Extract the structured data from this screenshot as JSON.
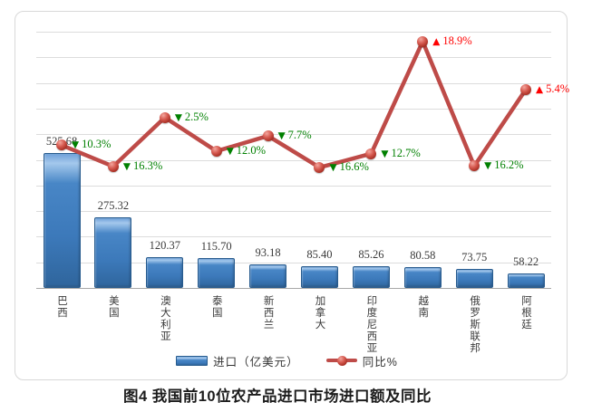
{
  "caption": "图4 我国前10位农产品进口市场进口额及同比",
  "colors": {
    "bar_fill": "#3C79BA",
    "bar_border": "#275B8E",
    "line": "#BE4B48",
    "marker": "#C0392B",
    "increase": "#FF0000",
    "decrease": "#008000",
    "grid": "#DCDCDC",
    "axis": "#A8A8A8",
    "value_label": "#3A3A3A",
    "frame_border": "#D8D8D8"
  },
  "legend": {
    "import_label": "进口（亿美元）",
    "yoy_label": "同比%"
  },
  "chart_data": {
    "type": "bar",
    "subtype": "bar-line-combo",
    "title": "图4 我国前10位农产品进口市场进口额及同比",
    "categories": [
      "巴西",
      "美国",
      "澳大利亚",
      "泰国",
      "新西兰",
      "加拿大",
      "印度尼西亚",
      "越南",
      "俄罗斯联邦",
      "阿根廷"
    ],
    "series": [
      {
        "name": "进口（亿美元）",
        "type": "bar",
        "values": [
          525.68,
          275.32,
          120.37,
          115.7,
          93.18,
          85.4,
          85.26,
          80.58,
          73.75,
          58.22
        ],
        "labels": [
          "525.68",
          "275.32",
          "120.37",
          "115.70",
          "93.18",
          "85.40",
          "85.26",
          "80.58",
          "73.75",
          "58.22"
        ]
      },
      {
        "name": "同比%",
        "type": "line",
        "values": [
          -10.3,
          -16.3,
          -2.5,
          -12.0,
          -7.7,
          -16.6,
          -12.7,
          18.9,
          -16.2,
          5.4
        ],
        "labels": [
          "10.3%",
          "16.3%",
          "2.5%",
          "12.0%",
          "7.7%",
          "16.6%",
          "12.7%",
          "18.9%",
          "16.2%",
          "5.4%"
        ]
      }
    ],
    "marker_up": "▲",
    "marker_down": "▼",
    "bar_axis": {
      "min": 0,
      "max": 1000,
      "gridline_step": 100,
      "labels_visible": false
    },
    "line_axis": {
      "zero_gridline_index": 7,
      "labels_visible": false
    },
    "grid": true,
    "legend_position": "bottom"
  }
}
